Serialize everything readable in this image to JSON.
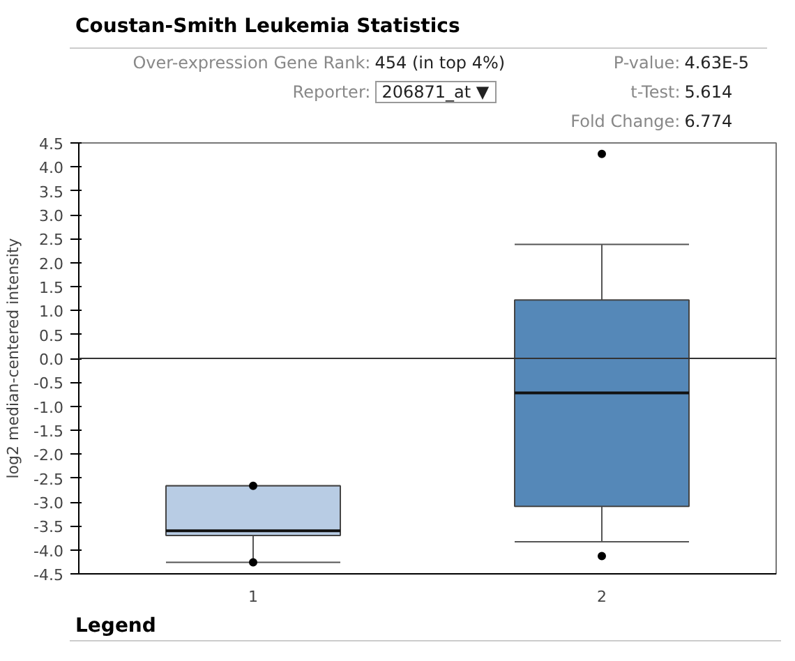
{
  "chart_data": {
    "type": "box",
    "title": "Coustan-Smith Leukemia Statistics",
    "annotations": [
      "Over-expression Gene Rank: 454 (in top 4%)",
      "Reporter: 206871_at ▼",
      "P-value: 4.63E-5",
      "t-Test: 5.614",
      "Fold Change: 6.774",
      "Legend"
    ],
    "ylabel": "log2 median-centered intensity",
    "categories": [
      "1",
      "2"
    ],
    "colors": [
      "#b8cce4",
      "#5588b8"
    ],
    "boxes": [
      {
        "low": -4.26,
        "q1": -3.7,
        "median": -3.6,
        "q3": -2.66,
        "high": -2.66,
        "outliers": [
          -2.66,
          -4.26
        ]
      },
      {
        "low": -3.83,
        "q1": -3.09,
        "median": -0.72,
        "q3": 1.22,
        "high": 2.38,
        "outliers": [
          4.27,
          -4.13
        ]
      }
    ],
    "ylim": [
      -4.5,
      4.5
    ],
    "yticks": [
      -4.5,
      {
        "value": -4,
        "label": "-4.0"
      },
      -3.5,
      {
        "value": -3,
        "label": "-3.0"
      },
      -2.5,
      {
        "value": -2,
        "label": "-2.0"
      },
      -1.5,
      {
        "value": -1,
        "label": "-1.0"
      },
      -0.5,
      {
        "value": 0,
        "label": "0.0"
      },
      0.5,
      {
        "value": 1,
        "label": "1.0"
      },
      1.5,
      {
        "value": 2,
        "label": "2.0"
      },
      2.5,
      {
        "value": 3,
        "label": "3.0"
      },
      3.5,
      {
        "value": 4,
        "label": "4.0"
      },
      4.5
    ],
    "ref_lines": [
      {
        "axis": "y",
        "value": 0,
        "color": "#333333"
      }
    ],
    "grid": false
  }
}
